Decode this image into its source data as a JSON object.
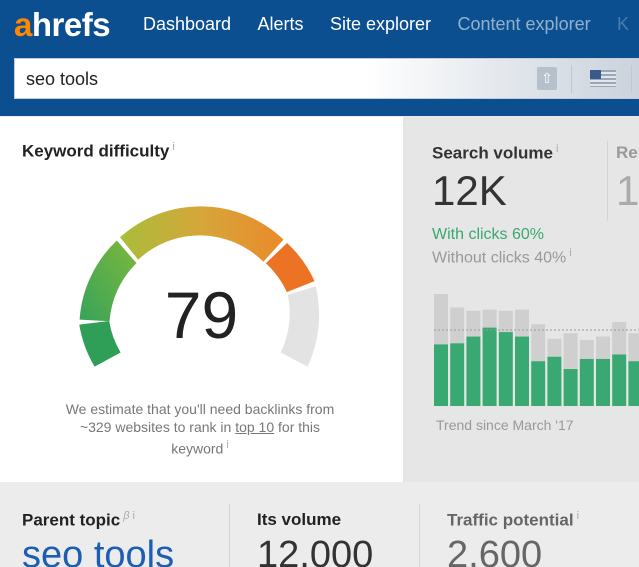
{
  "brand": {
    "logo_a": "a",
    "logo_rest": "hrefs",
    "accent": "#ff8800",
    "nav_bg": "#0b4f91"
  },
  "nav": {
    "items": [
      "Dashboard",
      "Alerts",
      "Site explorer",
      "Content explorer",
      "K"
    ]
  },
  "search": {
    "query": "seo tools",
    "upload_icon": "upload-icon",
    "flag_icon": "us-flag-icon"
  },
  "keyword_difficulty": {
    "title": "Keyword difficulty",
    "info": "i",
    "value": "79",
    "score": 79,
    "note_pre": "We estimate that you'll need backlinks from ~329 websites to rank in ",
    "note_link": "top 10",
    "note_post": " for this keyword",
    "note_info": "i"
  },
  "search_volume": {
    "title": "Search volume",
    "info": "i",
    "value": "12K",
    "with_clicks": "With clicks 60%",
    "without_clicks": "Without clicks 40%",
    "without_info": "i",
    "trend_label": "Trend since March '17",
    "next_label": "Re",
    "next_value": "1"
  },
  "parent_topic": {
    "title": "Parent topic",
    "beta": "β",
    "info": "i",
    "value": "seo tools"
  },
  "its_volume": {
    "title": "Its volume",
    "value": "12,000"
  },
  "traffic_potential": {
    "title": "Traffic potential",
    "info": "i",
    "value": "2,600"
  },
  "chart_data": {
    "type": "bar",
    "series": [
      {
        "name": "With clicks",
        "color": "#3aa872",
        "values": [
          55,
          56,
          62,
          70,
          66,
          62,
          40,
          44,
          33,
          42,
          42,
          46,
          40
        ]
      },
      {
        "name": "Without clicks",
        "color": "#cfcfcf",
        "values": [
          45,
          32,
          23,
          16,
          19,
          24,
          33,
          16,
          32,
          17,
          20,
          29,
          25
        ]
      }
    ]
  }
}
